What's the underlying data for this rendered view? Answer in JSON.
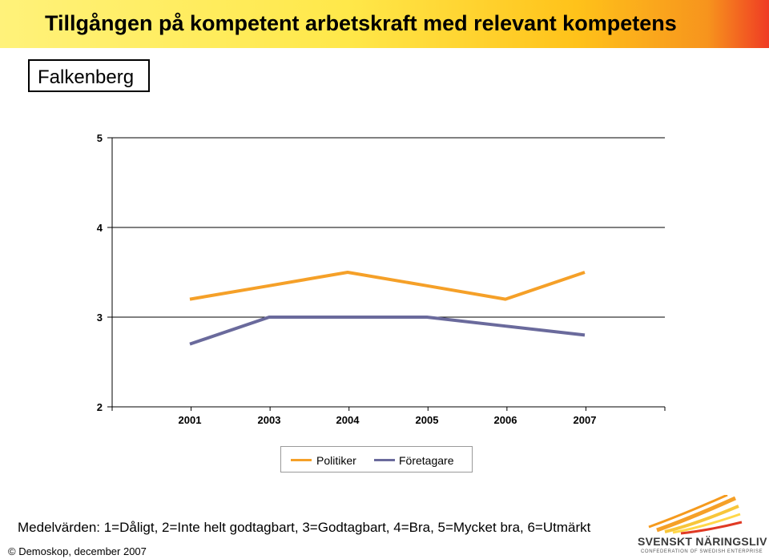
{
  "header": {
    "title": "Tillgången på kompetent arbetskraft med relevant kompetens",
    "subtitle": "Falkenberg"
  },
  "chart_data": {
    "type": "line",
    "categories": [
      "2001",
      "2003",
      "2004",
      "2005",
      "2006",
      "2007"
    ],
    "ylim": [
      2,
      5
    ],
    "yticks": [
      "2",
      "3",
      "4",
      "5"
    ],
    "grid": true,
    "legend_position": "bottom",
    "series": [
      {
        "name": "Politiker",
        "values": [
          3.2,
          3.35,
          3.5,
          3.35,
          3.2,
          3.5
        ],
        "color": "#f5a028"
      },
      {
        "name": "Företagare",
        "values": [
          2.7,
          3.0,
          3.0,
          3.0,
          2.9,
          2.8
        ],
        "color": "#6a6a9c"
      }
    ]
  },
  "footer": {
    "note": "Medelvärden: 1=Dåligt, 2=Inte helt godtagbart, 3=Godtagbart, 4=Bra, 5=Mycket bra, 6=Utmärkt",
    "copyright": "© Demoskop, december 2007"
  },
  "logo": {
    "name": "SVENSKT NÄRINGSLIV",
    "tagline": "CONFEDERATION OF SWEDISH ENTERPRISE",
    "icon": "sun-rays-logo-icon"
  }
}
